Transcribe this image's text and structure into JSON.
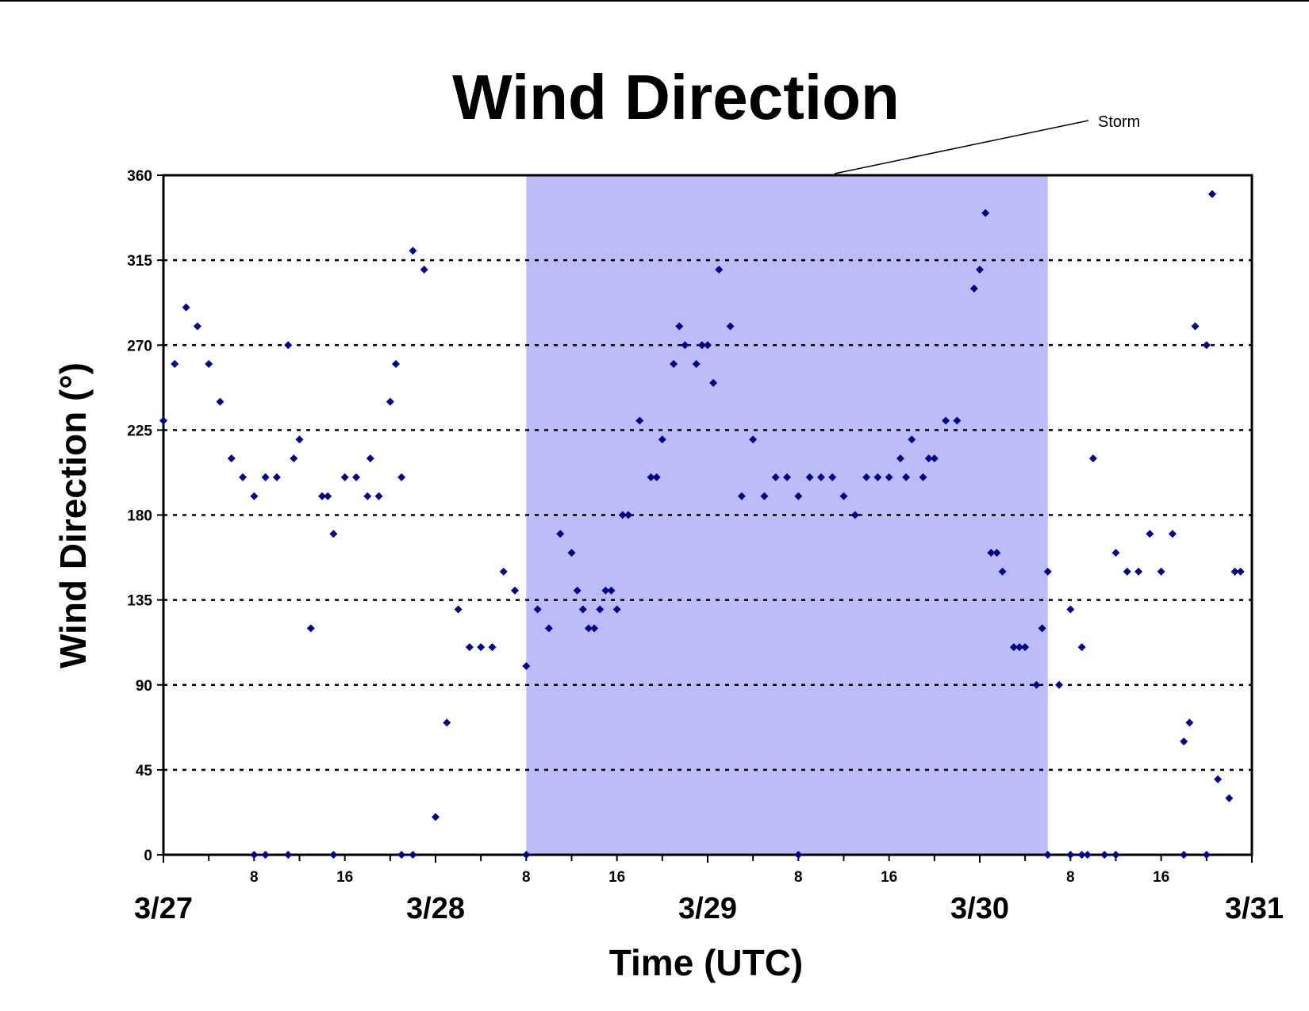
{
  "chart_data": {
    "type": "scatter",
    "title": "Wind Direction",
    "xlabel": "Time (UTC)",
    "ylabel": "Wind Direction (°)",
    "ylim": [
      0,
      360
    ],
    "yticks": [
      "0",
      "45",
      "90",
      "135",
      "180",
      "225",
      "270",
      "315",
      "360"
    ],
    "xlim": [
      "3/27 00:00",
      "3/31 00:00"
    ],
    "date_ticks": [
      "3/27",
      "3/28",
      "3/29",
      "3/30",
      "3/31"
    ],
    "hour_ticks": [
      "8",
      "16",
      "8",
      "16",
      "8",
      "16",
      "8",
      "16"
    ],
    "grid": "horizontal dotted",
    "legend": "none",
    "colors": {
      "marker": "#00008B",
      "storm_band": "#BCBCF9",
      "axis": "#000000"
    },
    "annotations": [
      {
        "text": "Storm",
        "start": "3/28 08:00",
        "end": "3/30 06:00"
      }
    ],
    "series": [
      {
        "x": [
          "3/27 00:00",
          "3/27 01:00",
          "3/27 02:00",
          "3/27 03:00",
          "3/27 04:00",
          "3/27 05:00",
          "3/27 06:00",
          "3/27 07:00",
          "3/27 08:00",
          "3/27 09:00",
          "3/27 10:00",
          "3/27 11:00",
          "3/27 11:30",
          "3/27 12:00",
          "3/27 13:00",
          "3/27 14:00",
          "3/27 14:30",
          "3/27 15:00",
          "3/27 16:00",
          "3/27 17:00",
          "3/27 18:00",
          "3/27 18:15",
          "3/27 19:00",
          "3/27 20:00",
          "3/27 20:30",
          "3/27 21:00",
          "3/27 22:00",
          "3/27 23:00",
          "3/28 00:00",
          "3/28 01:00",
          "3/28 02:00",
          "3/28 03:00",
          "3/28 04:00",
          "3/28 05:00",
          "3/28 06:00",
          "3/28 07:00",
          "3/28 08:00",
          "3/28 09:00",
          "3/28 10:00",
          "3/28 11:00",
          "3/28 12:00",
          "3/28 12:30",
          "3/28 13:00",
          "3/28 13:30",
          "3/28 14:00",
          "3/28 14:30",
          "3/28 15:00",
          "3/28 15:30",
          "3/28 16:00",
          "3/28 16:30",
          "3/28 17:00",
          "3/28 18:00",
          "3/28 19:00",
          "3/28 19:30",
          "3/28 20:00",
          "3/28 21:00",
          "3/28 21:30",
          "3/28 22:00",
          "3/28 23:00",
          "3/28 23:30",
          "3/29 00:00",
          "3/29 00:30",
          "3/29 01:00",
          "3/29 02:00",
          "3/29 03:00",
          "3/29 04:00",
          "3/29 05:00",
          "3/29 06:00",
          "3/29 07:00",
          "3/29 08:00",
          "3/29 09:00",
          "3/29 10:00",
          "3/29 11:00",
          "3/29 12:00",
          "3/29 13:00",
          "3/29 14:00",
          "3/29 15:00",
          "3/29 16:00",
          "3/29 17:00",
          "3/29 17:30",
          "3/29 18:00",
          "3/29 19:00",
          "3/29 19:30",
          "3/29 20:00",
          "3/29 21:00",
          "3/29 22:00",
          "3/29 23:30",
          "3/30 00:00",
          "3/30 00:30",
          "3/30 01:00",
          "3/30 01:30",
          "3/30 02:00",
          "3/30 03:00",
          "3/30 03:30",
          "3/30 04:00",
          "3/30 05:00",
          "3/30 05:30",
          "3/30 06:00",
          "3/30 07:00",
          "3/30 08:00",
          "3/30 09:00",
          "3/30 10:00",
          "3/30 12:00",
          "3/30 13:00",
          "3/30 14:00",
          "3/30 15:00",
          "3/30 16:00",
          "3/30 17:00",
          "3/30 18:00",
          "3/30 18:30",
          "3/30 19:00",
          "3/30 20:00",
          "3/30 20:30",
          "3/30 21:00",
          "3/30 22:00",
          "3/30 22:30",
          "3/30 23:00",
          "3/27 08:00",
          "3/27 09:00",
          "3/27 11:00",
          "3/27 15:00",
          "3/27 21:00",
          "3/27 22:00",
          "3/28 08:00",
          "3/29 08:00",
          "3/30 06:00",
          "3/30 08:00",
          "3/30 09:00",
          "3/30 09:30",
          "3/30 11:00",
          "3/30 12:00",
          "3/30 18:00",
          "3/30 20:00"
        ],
        "y": [
          230,
          260,
          290,
          280,
          260,
          240,
          210,
          200,
          190,
          200,
          200,
          270,
          210,
          220,
          120,
          190,
          190,
          170,
          200,
          200,
          190,
          210,
          190,
          240,
          260,
          200,
          320,
          310,
          20,
          70,
          130,
          110,
          110,
          110,
          150,
          140,
          100,
          130,
          120,
          170,
          160,
          140,
          130,
          120,
          120,
          130,
          140,
          140,
          130,
          180,
          180,
          230,
          200,
          200,
          220,
          260,
          280,
          270,
          260,
          270,
          270,
          250,
          310,
          280,
          190,
          220,
          190,
          200,
          200,
          190,
          200,
          200,
          200,
          190,
          180,
          200,
          200,
          200,
          210,
          200,
          220,
          200,
          210,
          210,
          230,
          230,
          300,
          310,
          340,
          160,
          160,
          150,
          110,
          110,
          110,
          90,
          120,
          150,
          90,
          130,
          110,
          210,
          160,
          150,
          150,
          170,
          150,
          170,
          60,
          70,
          280,
          270,
          350,
          40,
          30,
          150,
          150,
          0,
          0,
          0,
          0,
          0,
          0,
          0,
          0,
          0,
          0,
          0,
          0,
          0,
          0,
          0,
          0
        ]
      }
    ]
  }
}
